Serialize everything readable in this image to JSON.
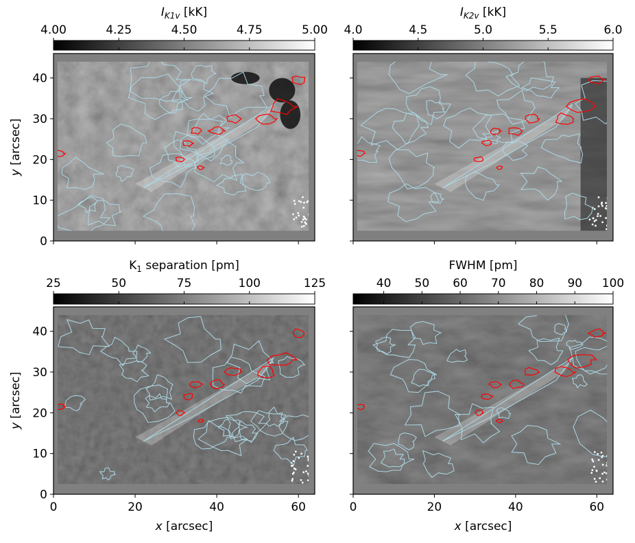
{
  "chart_data": [
    {
      "type": "heatmap",
      "colorbar_label": "I",
      "colorbar_label_sub": "K1v",
      "colorbar_label_unit": " [kK]",
      "colorbar_ticks": [
        4.0,
        4.25,
        4.5,
        4.75,
        5.0
      ],
      "colorbar_ticklabels": [
        "4.00",
        "4.25",
        "4.50",
        "4.75",
        "5.00"
      ],
      "colorbar_range": [
        4.0,
        5.0
      ],
      "colormap": "gray",
      "xlim": [
        0,
        64
      ],
      "ylim": [
        0,
        46
      ],
      "ylabel_italic": "y",
      "ylabel_unit": " [arcsec]",
      "xlabel_italic": "",
      "xlabel_unit": "",
      "yticks": [
        "0",
        "10",
        "20",
        "30",
        "40"
      ],
      "xticks": [
        "",
        "",
        "",
        ""
      ],
      "contours": [
        {
          "color": "#add8e6"
        },
        {
          "color": "#ff0000"
        }
      ]
    },
    {
      "type": "heatmap",
      "colorbar_label": "I",
      "colorbar_label_sub": "K2v",
      "colorbar_label_unit": " [kK]",
      "colorbar_ticks": [
        4.0,
        4.5,
        5.0,
        5.5,
        6.0
      ],
      "colorbar_ticklabels": [
        "4.0",
        "4.5",
        "5.0",
        "5.5",
        "6.0"
      ],
      "colorbar_range": [
        4.0,
        6.0
      ],
      "colormap": "gray",
      "xlim": [
        0,
        64
      ],
      "ylim": [
        0,
        46
      ],
      "ylabel_italic": "",
      "ylabel_unit": "",
      "xlabel_italic": "",
      "xlabel_unit": "",
      "yticks": [
        "",
        "",
        "",
        "",
        ""
      ],
      "xticks": [
        "",
        "",
        "",
        ""
      ],
      "contours": [
        {
          "color": "#add8e6"
        },
        {
          "color": "#ff0000"
        }
      ]
    },
    {
      "type": "heatmap",
      "colorbar_label": "K",
      "colorbar_label_sub": "1",
      "colorbar_label_unit": " separation [pm]",
      "colorbar_ticks": [
        25,
        50,
        75,
        100,
        125
      ],
      "colorbar_ticklabels": [
        "25",
        "50",
        "75",
        "100",
        "125"
      ],
      "colorbar_range": [
        25,
        125
      ],
      "colormap": "gray",
      "xlim": [
        0,
        64
      ],
      "ylim": [
        0,
        46
      ],
      "ylabel_italic": "y",
      "ylabel_unit": " [arcsec]",
      "xlabel_italic": "x",
      "xlabel_unit": " [arcsec]",
      "yticks": [
        "0",
        "10",
        "20",
        "30",
        "40"
      ],
      "xticks": [
        "0",
        "20",
        "40",
        "60"
      ],
      "contours": [
        {
          "color": "#add8e6"
        },
        {
          "color": "#ff0000"
        }
      ]
    },
    {
      "type": "heatmap",
      "colorbar_label": "FWHM",
      "colorbar_label_sub": "",
      "colorbar_label_unit": " [pm]",
      "colorbar_ticks": [
        40,
        50,
        60,
        70,
        80,
        90,
        100
      ],
      "colorbar_ticklabels": [
        "40",
        "50",
        "60",
        "70",
        "80",
        "90",
        "100"
      ],
      "colorbar_range": [
        32,
        100
      ],
      "colormap": "gray",
      "xlim": [
        0,
        64
      ],
      "ylim": [
        0,
        46
      ],
      "ylabel_italic": "",
      "ylabel_unit": "",
      "xlabel_italic": "x",
      "xlabel_unit": " [arcsec]",
      "yticks": [
        "",
        "",
        "",
        "",
        ""
      ],
      "xticks": [
        "0",
        "20",
        "40",
        "60"
      ],
      "contours": [
        {
          "color": "#add8e6"
        },
        {
          "color": "#ff0000"
        }
      ]
    }
  ]
}
